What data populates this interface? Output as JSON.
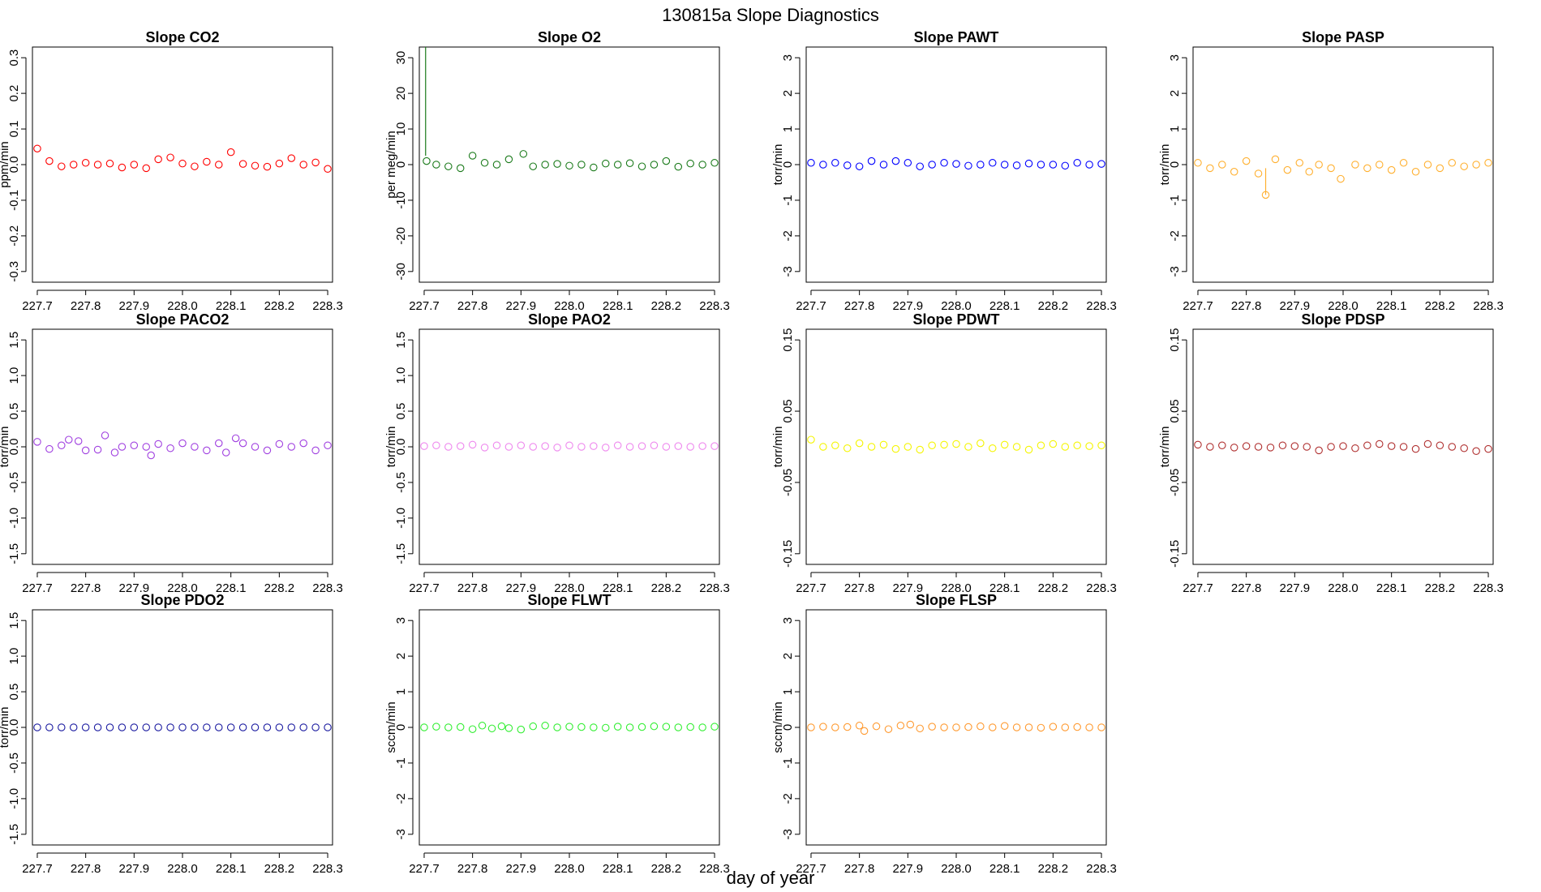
{
  "figure": {
    "title": "130815a   Slope Diagnostics",
    "xlabel": "day of year"
  },
  "chart_data": [
    {
      "type": "scatter",
      "title": "Slope CO2",
      "ylabel": "ppm/min",
      "color": "#ff0000",
      "xlim": [
        227.69,
        228.31
      ],
      "ylim": [
        -0.33,
        0.33
      ],
      "x_ticks": [
        "227.7",
        "227.8",
        "227.9",
        "228.0",
        "228.1",
        "228.2",
        "228.3"
      ],
      "y_ticks": [
        "-0.3",
        "-0.2",
        "-0.1",
        "0.0",
        "0.1",
        "0.2",
        "0.3"
      ],
      "x": [
        227.7,
        227.725,
        227.75,
        227.775,
        227.8,
        227.825,
        227.85,
        227.875,
        227.9,
        227.925,
        227.95,
        227.975,
        228.0,
        228.025,
        228.05,
        228.075,
        228.1,
        228.125,
        228.15,
        228.175,
        228.2,
        228.225,
        228.25,
        228.275,
        228.3
      ],
      "y": [
        0.045,
        0.01,
        -0.005,
        0.0,
        0.005,
        0.0,
        0.003,
        -0.008,
        0.0,
        -0.01,
        0.015,
        0.02,
        0.003,
        -0.005,
        0.008,
        0.0,
        0.035,
        0.002,
        -0.003,
        -0.006,
        0.003,
        0.018,
        0.0,
        0.006,
        -0.012
      ]
    },
    {
      "type": "scatter",
      "title": "Slope O2",
      "ylabel": "per meg/min",
      "color": "#1a7a1a",
      "xlim": [
        227.69,
        228.31
      ],
      "ylim": [
        -33,
        33
      ],
      "x_ticks": [
        "227.7",
        "227.8",
        "227.9",
        "228.0",
        "228.1",
        "228.2",
        "228.3"
      ],
      "y_ticks": [
        "-30",
        "-20",
        "-10",
        "0",
        "10",
        "20",
        "30"
      ],
      "x": [
        227.705,
        227.725,
        227.75,
        227.775,
        227.8,
        227.825,
        227.85,
        227.875,
        227.905,
        227.925,
        227.95,
        227.975,
        228.0,
        228.025,
        228.05,
        228.075,
        228.1,
        228.125,
        228.15,
        228.175,
        228.2,
        228.225,
        228.25,
        228.275,
        228.3
      ],
      "y": [
        1.0,
        0.0,
        -0.5,
        -1.0,
        2.5,
        0.5,
        0.0,
        1.5,
        3.0,
        -0.5,
        0.0,
        0.2,
        -0.3,
        0.0,
        -0.8,
        0.3,
        0.0,
        0.4,
        -0.5,
        0.0,
        1.0,
        -0.6,
        0.3,
        0.0,
        0.5
      ],
      "spike": {
        "x": 227.703,
        "y_from": 2.5,
        "y_to": 33
      }
    },
    {
      "type": "scatter",
      "title": "Slope PAWT",
      "ylabel": "torr/min",
      "color": "#0000ff",
      "xlim": [
        227.69,
        228.31
      ],
      "ylim": [
        -3.3,
        3.3
      ],
      "x_ticks": [
        "227.7",
        "227.8",
        "227.9",
        "228.0",
        "228.1",
        "228.2",
        "228.3"
      ],
      "y_ticks": [
        "-3",
        "-2",
        "-1",
        "0",
        "1",
        "2",
        "3"
      ],
      "x": [
        227.7,
        227.725,
        227.75,
        227.775,
        227.8,
        227.825,
        227.85,
        227.875,
        227.9,
        227.925,
        227.95,
        227.975,
        228.0,
        228.025,
        228.05,
        228.075,
        228.1,
        228.125,
        228.15,
        228.175,
        228.2,
        228.225,
        228.25,
        228.275,
        228.3
      ],
      "y": [
        0.05,
        0.0,
        0.05,
        -0.02,
        -0.05,
        0.1,
        0.0,
        0.1,
        0.05,
        -0.05,
        0.0,
        0.05,
        0.02,
        -0.03,
        0.0,
        0.05,
        0.0,
        -0.02,
        0.03,
        0.0,
        0.0,
        -0.03,
        0.05,
        0.0,
        0.02
      ]
    },
    {
      "type": "scatter",
      "title": "Slope PASP",
      "ylabel": "torr/min",
      "color": "#ffb030",
      "xlim": [
        227.69,
        228.31
      ],
      "ylim": [
        -3.3,
        3.3
      ],
      "x_ticks": [
        "227.7",
        "227.8",
        "227.9",
        "228.0",
        "228.1",
        "228.2",
        "228.3"
      ],
      "y_ticks": [
        "-3",
        "-2",
        "-1",
        "0",
        "1",
        "2",
        "3"
      ],
      "x": [
        227.7,
        227.725,
        227.75,
        227.775,
        227.8,
        227.825,
        227.84,
        227.86,
        227.885,
        227.91,
        227.93,
        227.95,
        227.975,
        227.995,
        228.025,
        228.05,
        228.075,
        228.1,
        228.125,
        228.15,
        228.175,
        228.2,
        228.225,
        228.25,
        228.275,
        228.3
      ],
      "y": [
        0.05,
        -0.1,
        0.0,
        -0.2,
        0.1,
        -0.25,
        -0.85,
        0.15,
        -0.15,
        0.05,
        -0.2,
        0.0,
        -0.1,
        -0.4,
        0.0,
        -0.1,
        0.0,
        -0.15,
        0.05,
        -0.2,
        0.0,
        -0.1,
        0.05,
        -0.05,
        0.0,
        0.05
      ],
      "spike": {
        "x": 227.84,
        "y_from": -0.1,
        "y_to": -0.85
      }
    },
    {
      "type": "scatter",
      "title": "Slope PACO2",
      "ylabel": "torr/min",
      "color": "#a040e0",
      "xlim": [
        227.69,
        228.31
      ],
      "ylim": [
        -1.65,
        1.65
      ],
      "x_ticks": [
        "227.7",
        "227.8",
        "227.9",
        "228.0",
        "228.1",
        "228.2",
        "228.3"
      ],
      "y_ticks": [
        "-1.5",
        "-1.0",
        "-0.5",
        "0.0",
        "0.5",
        "1.0",
        "1.5"
      ],
      "x": [
        227.7,
        227.725,
        227.75,
        227.765,
        227.785,
        227.8,
        227.825,
        227.84,
        227.86,
        227.875,
        227.9,
        227.925,
        227.935,
        227.95,
        227.975,
        228.0,
        228.025,
        228.05,
        228.075,
        228.09,
        228.11,
        228.125,
        228.15,
        228.175,
        228.2,
        228.225,
        228.25,
        228.275,
        228.3
      ],
      "y": [
        0.07,
        -0.03,
        0.02,
        0.1,
        0.08,
        -0.05,
        -0.04,
        0.16,
        -0.08,
        0.0,
        0.02,
        0.0,
        -0.12,
        0.04,
        -0.02,
        0.05,
        0.0,
        -0.05,
        0.05,
        -0.08,
        0.12,
        0.05,
        0.0,
        -0.05,
        0.04,
        0.0,
        0.05,
        -0.05,
        0.02
      ]
    },
    {
      "type": "scatter",
      "title": "Slope PAO2",
      "ylabel": "torr/min",
      "color": "#ee88ee",
      "xlim": [
        227.69,
        228.31
      ],
      "ylim": [
        -1.65,
        1.65
      ],
      "x_ticks": [
        "227.7",
        "227.8",
        "227.9",
        "228.0",
        "228.1",
        "228.2",
        "228.3"
      ],
      "y_ticks": [
        "-1.5",
        "-1.0",
        "-0.5",
        "0.0",
        "0.5",
        "1.0",
        "1.5"
      ],
      "x": [
        227.7,
        227.725,
        227.75,
        227.775,
        227.8,
        227.825,
        227.85,
        227.875,
        227.9,
        227.925,
        227.95,
        227.975,
        228.0,
        228.025,
        228.05,
        228.075,
        228.1,
        228.125,
        228.15,
        228.175,
        228.2,
        228.225,
        228.25,
        228.275,
        228.3
      ],
      "y": [
        0.01,
        0.02,
        0.0,
        0.01,
        0.03,
        -0.01,
        0.02,
        0.0,
        0.02,
        0.0,
        0.01,
        -0.01,
        0.02,
        0.0,
        0.01,
        -0.01,
        0.02,
        0.0,
        0.01,
        0.02,
        0.0,
        0.01,
        0.0,
        0.01,
        0.01
      ]
    },
    {
      "type": "scatter",
      "title": "Slope PDWT",
      "ylabel": "torr/min",
      "color": "#f5f500",
      "xlim": [
        227.69,
        228.31
      ],
      "ylim": [
        -0.165,
        0.165
      ],
      "x_ticks": [
        "227.7",
        "227.8",
        "227.9",
        "228.0",
        "228.1",
        "228.2",
        "228.3"
      ],
      "y_ticks": [
        "-0.15",
        "-0.05",
        "0.05",
        "0.15"
      ],
      "x": [
        227.7,
        227.725,
        227.75,
        227.775,
        227.8,
        227.825,
        227.85,
        227.875,
        227.9,
        227.925,
        227.95,
        227.975,
        228.0,
        228.025,
        228.05,
        228.075,
        228.1,
        228.125,
        228.15,
        228.175,
        228.2,
        228.225,
        228.25,
        228.275,
        228.3
      ],
      "y": [
        0.01,
        0.0,
        0.002,
        -0.002,
        0.005,
        0.0,
        0.003,
        -0.003,
        0.0,
        -0.004,
        0.002,
        0.003,
        0.004,
        0.0,
        0.005,
        -0.002,
        0.003,
        0.0,
        -0.004,
        0.002,
        0.004,
        0.0,
        0.002,
        0.001,
        0.002
      ]
    },
    {
      "type": "scatter",
      "title": "Slope PDSP",
      "ylabel": "torr/min",
      "color": "#b03030",
      "xlim": [
        227.69,
        228.31
      ],
      "ylim": [
        -0.165,
        0.165
      ],
      "x_ticks": [
        "227.7",
        "227.8",
        "227.9",
        "228.0",
        "228.1",
        "228.2",
        "228.3"
      ],
      "y_ticks": [
        "-0.15",
        "-0.05",
        "0.05",
        "0.15"
      ],
      "x": [
        227.7,
        227.725,
        227.75,
        227.775,
        227.8,
        227.825,
        227.85,
        227.875,
        227.9,
        227.925,
        227.95,
        227.975,
        228.0,
        228.025,
        228.05,
        228.075,
        228.1,
        228.125,
        228.15,
        228.175,
        228.2,
        228.225,
        228.25,
        228.275,
        228.3
      ],
      "y": [
        0.003,
        0.0,
        0.002,
        -0.001,
        0.001,
        0.0,
        -0.001,
        0.002,
        0.001,
        0.0,
        -0.005,
        0.0,
        0.001,
        -0.002,
        0.002,
        0.004,
        0.001,
        0.0,
        -0.003,
        0.004,
        0.002,
        0.0,
        -0.002,
        -0.006,
        -0.003
      ]
    },
    {
      "type": "scatter",
      "title": "Slope PDO2",
      "ylabel": "torr/min",
      "color": "#1a1aa0",
      "xlim": [
        227.69,
        228.31
      ],
      "ylim": [
        -1.65,
        1.65
      ],
      "x_ticks": [
        "227.7",
        "227.8",
        "227.9",
        "228.0",
        "228.1",
        "228.2",
        "228.3"
      ],
      "y_ticks": [
        "-1.5",
        "-1.0",
        "-0.5",
        "0.0",
        "0.5",
        "1.0",
        "1.5"
      ],
      "x": [
        227.7,
        227.725,
        227.75,
        227.775,
        227.8,
        227.825,
        227.85,
        227.875,
        227.9,
        227.925,
        227.95,
        227.975,
        228.0,
        228.025,
        228.05,
        228.075,
        228.1,
        228.125,
        228.15,
        228.175,
        228.2,
        228.225,
        228.25,
        228.275,
        228.3
      ],
      "y": [
        0,
        0,
        0,
        0,
        0,
        0,
        0,
        0,
        0,
        0,
        0,
        0,
        0,
        0,
        0,
        0,
        0,
        0,
        0,
        0,
        0,
        0,
        0,
        0,
        0
      ]
    },
    {
      "type": "scatter",
      "title": "Slope FLWT",
      "ylabel": "sccm/min",
      "color": "#33ee33",
      "xlim": [
        227.69,
        228.31
      ],
      "ylim": [
        -3.3,
        3.3
      ],
      "x_ticks": [
        "227.7",
        "227.8",
        "227.9",
        "228.0",
        "228.1",
        "228.2",
        "228.3"
      ],
      "y_ticks": [
        "-3",
        "-2",
        "-1",
        "0",
        "1",
        "2",
        "3"
      ],
      "x": [
        227.7,
        227.725,
        227.75,
        227.775,
        227.8,
        227.82,
        227.84,
        227.86,
        227.875,
        227.9,
        227.925,
        227.95,
        227.975,
        228.0,
        228.025,
        228.05,
        228.075,
        228.1,
        228.125,
        228.15,
        228.175,
        228.2,
        228.225,
        228.25,
        228.275,
        228.3
      ],
      "y": [
        0.0,
        0.02,
        0.0,
        0.01,
        -0.05,
        0.05,
        -0.03,
        0.03,
        -0.02,
        -0.06,
        0.03,
        0.05,
        0.0,
        0.02,
        0.01,
        0.0,
        -0.01,
        0.02,
        0.0,
        0.01,
        0.03,
        0.02,
        0.0,
        0.01,
        0.0,
        0.02
      ]
    },
    {
      "type": "scatter",
      "title": "Slope FLSP",
      "ylabel": "sccm/min",
      "color": "#ff9a30",
      "xlim": [
        227.69,
        228.31
      ],
      "ylim": [
        -3.3,
        3.3
      ],
      "x_ticks": [
        "227.7",
        "227.8",
        "227.9",
        "228.0",
        "228.1",
        "228.2",
        "228.3"
      ],
      "y_ticks": [
        "-3",
        "-2",
        "-1",
        "0",
        "1",
        "2",
        "3"
      ],
      "x": [
        227.7,
        227.725,
        227.75,
        227.775,
        227.8,
        227.81,
        227.835,
        227.86,
        227.885,
        227.905,
        227.925,
        227.95,
        227.975,
        228.0,
        228.025,
        228.05,
        228.075,
        228.1,
        228.125,
        228.15,
        228.175,
        228.2,
        228.225,
        228.25,
        228.275,
        228.3
      ],
      "y": [
        0.0,
        0.02,
        0.0,
        0.01,
        0.05,
        -0.1,
        0.03,
        -0.05,
        0.05,
        0.08,
        -0.03,
        0.02,
        0.0,
        0.0,
        0.01,
        0.03,
        0.0,
        0.04,
        0.0,
        0.0,
        -0.01,
        0.02,
        0.0,
        0.01,
        0.0,
        0.0
      ]
    }
  ]
}
